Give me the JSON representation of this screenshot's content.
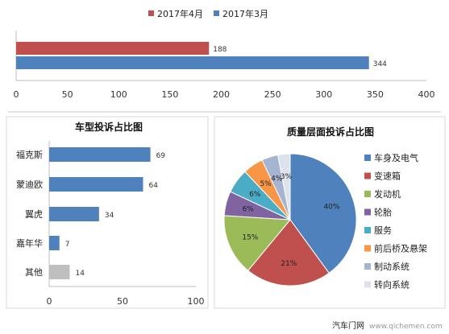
{
  "chart_data": [
    {
      "type": "bar",
      "orientation": "horizontal",
      "categories": [
        ""
      ],
      "series": [
        {
          "name": "2017年4月",
          "values": [
            188
          ],
          "color": "#c0504d"
        },
        {
          "name": "2017年3月",
          "values": [
            344
          ],
          "color": "#4f81bd"
        }
      ],
      "xlim": [
        0,
        400
      ],
      "xticks": [
        0,
        50,
        100,
        150,
        200,
        250,
        300,
        350,
        400
      ],
      "legend": "top",
      "grid": false
    },
    {
      "type": "bar",
      "orientation": "horizontal",
      "title": "车型投诉占比图",
      "categories": [
        "福克斯",
        "蒙迪欧",
        "翼虎",
        "嘉年华",
        "其他"
      ],
      "values": [
        69,
        64,
        34,
        7,
        14
      ],
      "colors": [
        "#4f81bd",
        "#4f81bd",
        "#4f81bd",
        "#4f81bd",
        "#bfbfbf"
      ],
      "xlim": [
        0,
        100
      ],
      "xticks": [
        0,
        50,
        100
      ],
      "grid": false
    },
    {
      "type": "pie",
      "title": "质量层面投诉占比图",
      "labels": [
        "车身及电气",
        "变速箱",
        "发动机",
        "轮胎",
        "服务",
        "前后桥及悬架",
        "制动系统",
        "转向系统"
      ],
      "values": [
        40,
        21,
        15,
        6,
        6,
        5,
        4,
        3
      ],
      "value_labels": [
        "40%",
        "21%",
        "15%",
        "6%",
        "6%",
        "5%",
        "4%",
        "3%"
      ],
      "colors": [
        "#4f81bd",
        "#c0504d",
        "#9bbb59",
        "#8064a2",
        "#4bacc6",
        "#f79646",
        "#a5b4d1",
        "#dde3ee"
      ],
      "legend": "right"
    }
  ],
  "footer": {
    "source": "汽车门网",
    "url": "www.qichemen.com"
  }
}
